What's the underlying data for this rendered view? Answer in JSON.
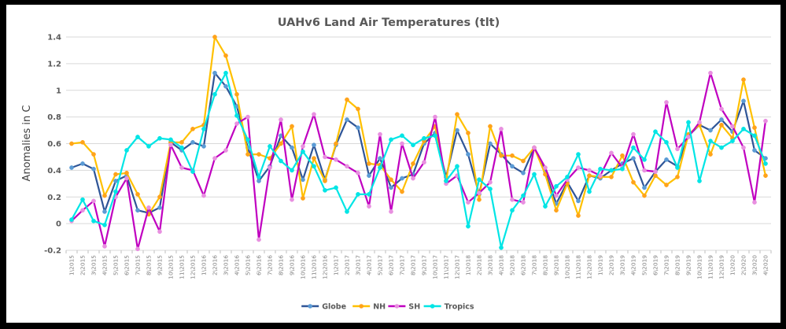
{
  "chart_data": {
    "type": "line",
    "title": "UAHv6 Land Air Temperatures (tlt)",
    "xlabel": "",
    "ylabel": "Anomalies in C",
    "ylim": [
      -0.2,
      1.4
    ],
    "yticks": [
      "-0.2",
      "0",
      "0.2",
      "0.4",
      "0.6",
      "0.8",
      "1",
      "1.2",
      "1.4"
    ],
    "ytick_values": [
      -0.2,
      0,
      0.2,
      0.4,
      0.6,
      0.8,
      1.0,
      1.2,
      1.4
    ],
    "grid": true,
    "legend_position": "bottom",
    "categories": [
      "1\\2015",
      "2\\2015",
      "3\\2015",
      "4\\2015",
      "5\\2015",
      "6\\2015",
      "7\\2015",
      "8\\2015",
      "9\\2015",
      "10\\2015",
      "11\\2015",
      "12\\2015",
      "1\\2016",
      "2\\2016",
      "3\\2016",
      "4\\2016",
      "5\\2016",
      "6\\2016",
      "7\\2016",
      "8\\2016",
      "9\\2016",
      "10\\2016",
      "11\\2016",
      "12\\2016",
      "1\\2017",
      "2\\2017",
      "3\\2017",
      "4\\2017",
      "5\\2017",
      "6\\2017",
      "7\\2017",
      "8\\2017",
      "9\\2017",
      "10\\2017",
      "11\\2017",
      "12\\2017",
      "1\\2018",
      "2\\2018",
      "3\\2018",
      "4\\2018",
      "5\\2018",
      "6\\2018",
      "7\\2018",
      "8\\2018",
      "9\\2018",
      "10\\2018",
      "11\\2018",
      "12\\2018",
      "1\\2019",
      "2\\2019",
      "3\\2019",
      "4\\2019",
      "5\\2019",
      "6\\2019",
      "7\\2019",
      "8\\2019",
      "9\\2019",
      "10\\2019",
      "11\\2019",
      "12\\2019",
      "1\\2020",
      "2\\2020",
      "3\\2020",
      "4\\2020"
    ],
    "series": [
      {
        "name": "Globe",
        "color": "#2f5597",
        "marker": "#5b9bd5",
        "values": [
          0.42,
          0.45,
          0.41,
          0.09,
          0.32,
          0.36,
          0.1,
          0.08,
          0.12,
          0.61,
          0.55,
          0.61,
          0.58,
          1.13,
          1.03,
          0.88,
          0.57,
          0.32,
          0.43,
          0.66,
          0.57,
          0.33,
          0.59,
          0.33,
          0.59,
          0.78,
          0.72,
          0.36,
          0.49,
          0.27,
          0.34,
          0.37,
          0.6,
          0.68,
          0.35,
          0.7,
          0.52,
          0.22,
          0.6,
          0.52,
          0.43,
          0.38,
          0.57,
          0.39,
          0.15,
          0.31,
          0.17,
          0.36,
          0.34,
          0.4,
          0.45,
          0.49,
          0.27,
          0.39,
          0.48,
          0.43,
          0.66,
          0.74,
          0.7,
          0.78,
          0.69,
          0.92,
          0.55,
          0.49
        ]
      },
      {
        "name": "NH",
        "color": "#ffc000",
        "marker": "#ffa31a",
        "values": [
          0.6,
          0.61,
          0.52,
          0.21,
          0.37,
          0.38,
          0.22,
          0.07,
          0.2,
          0.61,
          0.61,
          0.71,
          0.74,
          1.4,
          1.26,
          0.97,
          0.52,
          0.52,
          0.49,
          0.6,
          0.73,
          0.19,
          0.49,
          0.32,
          0.6,
          0.93,
          0.86,
          0.45,
          0.44,
          0.33,
          0.24,
          0.45,
          0.62,
          0.73,
          0.32,
          0.82,
          0.68,
          0.18,
          0.73,
          0.51,
          0.51,
          0.47,
          0.57,
          0.37,
          0.1,
          0.3,
          0.06,
          0.36,
          0.35,
          0.35,
          0.51,
          0.31,
          0.21,
          0.36,
          0.29,
          0.35,
          0.67,
          0.74,
          0.52,
          0.74,
          0.64,
          1.08,
          0.72,
          0.36
        ]
      },
      {
        "name": "SH",
        "color": "#c000c0",
        "marker": "#e890e0",
        "values": [
          0.02,
          0.1,
          0.17,
          -0.17,
          0.2,
          0.34,
          -0.19,
          0.12,
          -0.06,
          0.59,
          0.42,
          0.4,
          0.21,
          0.49,
          0.55,
          0.75,
          0.8,
          -0.12,
          0.42,
          0.78,
          0.18,
          0.58,
          0.82,
          0.5,
          0.48,
          0.43,
          0.38,
          0.13,
          0.67,
          0.09,
          0.6,
          0.34,
          0.46,
          0.8,
          0.3,
          0.36,
          0.16,
          0.23,
          0.31,
          0.71,
          0.18,
          0.16,
          0.57,
          0.42,
          0.21,
          0.33,
          0.42,
          0.4,
          0.36,
          0.53,
          0.42,
          0.67,
          0.4,
          0.39,
          0.91,
          0.56,
          0.65,
          0.76,
          1.13,
          0.86,
          0.73,
          0.57,
          0.16,
          0.77
        ]
      },
      {
        "name": "Tropics",
        "color": "#00e5e5",
        "marker": "#00e5e5",
        "values": [
          0.03,
          0.18,
          0.02,
          -0.01,
          0.24,
          0.55,
          0.65,
          0.58,
          0.64,
          0.63,
          0.57,
          0.39,
          0.71,
          0.97,
          1.13,
          0.81,
          0.63,
          0.35,
          0.58,
          0.47,
          0.4,
          0.54,
          0.43,
          0.25,
          0.27,
          0.09,
          0.22,
          0.22,
          0.42,
          0.63,
          0.66,
          0.59,
          0.64,
          0.66,
          0.32,
          0.43,
          -0.02,
          0.33,
          0.26,
          -0.18,
          0.1,
          0.21,
          0.37,
          0.13,
          0.28,
          0.35,
          0.52,
          0.24,
          0.41,
          0.4,
          0.41,
          0.57,
          0.48,
          0.69,
          0.61,
          0.42,
          0.76,
          0.32,
          0.62,
          0.57,
          0.62,
          0.71,
          0.66,
          0.45
        ]
      }
    ]
  }
}
